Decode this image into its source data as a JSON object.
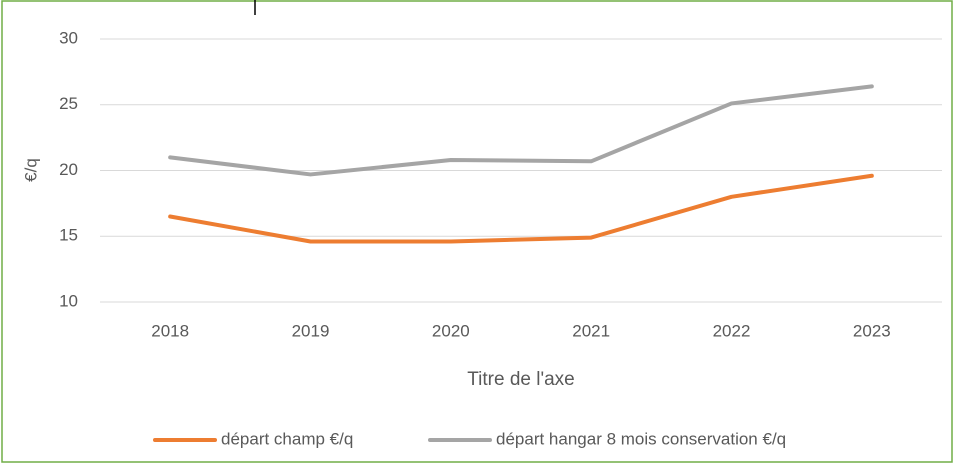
{
  "chart_data": {
    "type": "line",
    "categories": [
      "2018",
      "2019",
      "2020",
      "2021",
      "2022",
      "2023"
    ],
    "series": [
      {
        "name": "départ champ €/q",
        "color": "#ed7d31",
        "values": [
          16.5,
          14.6,
          14.6,
          14.9,
          18.0,
          19.6
        ]
      },
      {
        "name": "départ hangar 8 mois conservation €/q",
        "color": "#a5a5a5",
        "values": [
          21.0,
          19.7,
          20.8,
          20.7,
          25.1,
          26.4
        ]
      }
    ],
    "ylim": [
      10,
      30
    ],
    "yticks": [
      10,
      15,
      20,
      25,
      30
    ],
    "grid": true,
    "ylabel": "€/q",
    "xlabel": "Titre de l'axe",
    "legend": "bottom"
  }
}
